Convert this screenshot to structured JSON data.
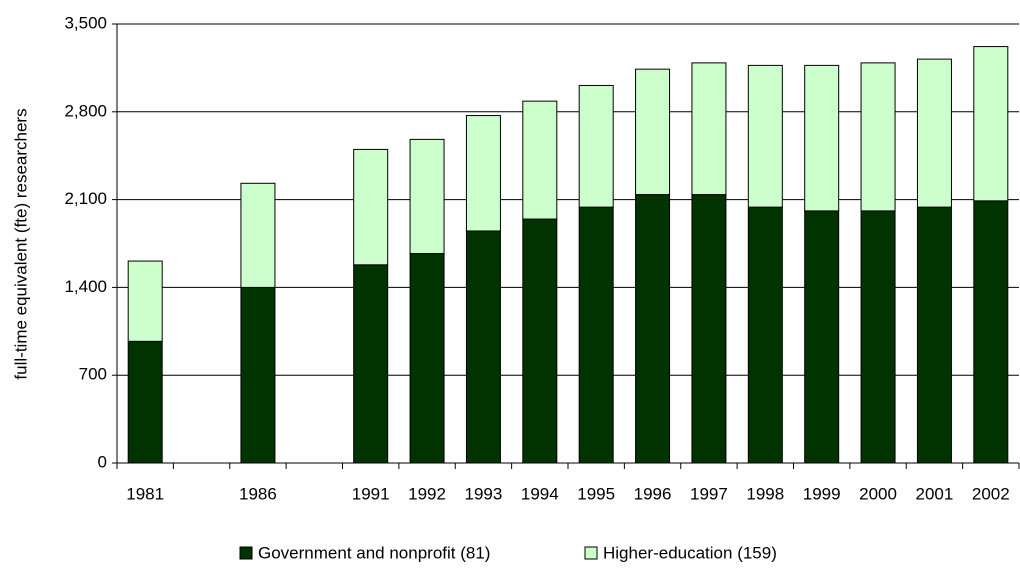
{
  "chart_data": {
    "type": "stacked_bar",
    "y_label": "full-time equivalent (fte) researchers",
    "categories": [
      "1981",
      null,
      "1986",
      null,
      "1991",
      "1992",
      "1993",
      "1994",
      "1995",
      "1996",
      "1997",
      "1998",
      "1999",
      "2000",
      "2001",
      "2002"
    ],
    "series": [
      {
        "name": "Government and nonprofit (81)",
        "color": "#003300",
        "values": [
          970,
          null,
          1400,
          null,
          1580,
          1670,
          1850,
          1945,
          2040,
          2140,
          2140,
          2040,
          2010,
          2010,
          2040,
          2090
        ]
      },
      {
        "name": "Higher-education (159)",
        "color": "#ccffcc",
        "values": [
          640,
          null,
          830,
          null,
          920,
          910,
          920,
          940,
          970,
          1000,
          1050,
          1130,
          1160,
          1180,
          1180,
          1230
        ]
      }
    ],
    "ylim": [
      0,
      3500
    ],
    "yticks": [
      0,
      700,
      {
        "value": 1400,
        "label": "1,400"
      },
      {
        "value": 2100,
        "label": "2,100"
      },
      {
        "value": 2800,
        "label": "2,800"
      },
      {
        "value": 3500,
        "label": "3,500"
      }
    ],
    "grid": true,
    "legend": "bottom"
  }
}
